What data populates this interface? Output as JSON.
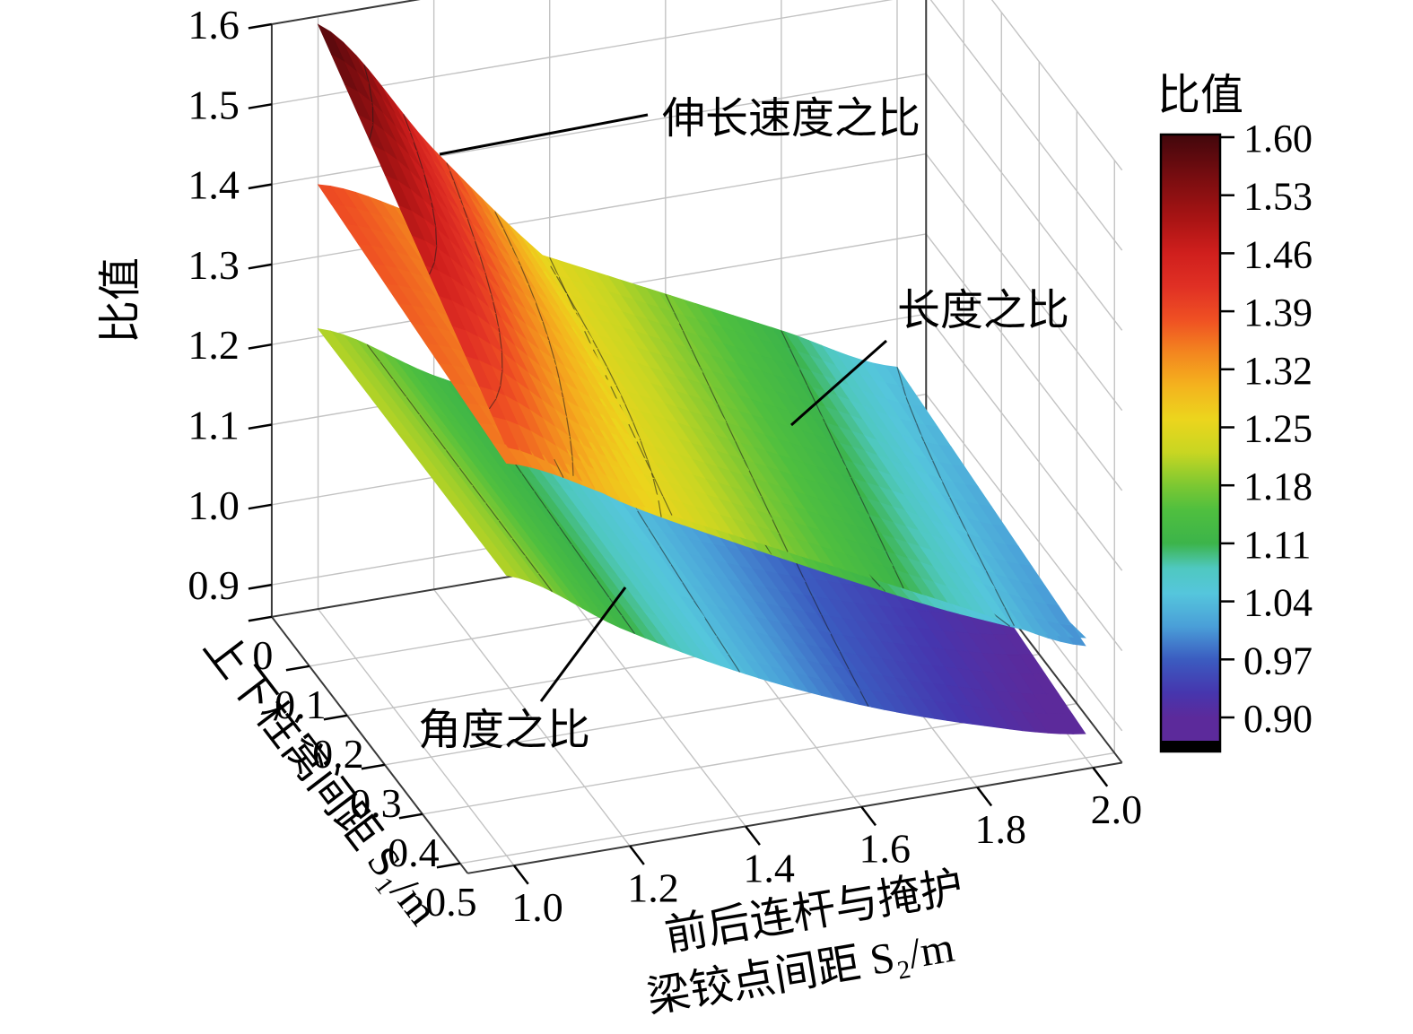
{
  "figure": {
    "colorbar": {
      "title": "比值",
      "tick_labels": [
        "1.60",
        "1.53",
        "1.46",
        "1.39",
        "1.32",
        "1.25",
        "1.18",
        "1.11",
        "1.04",
        "0.97",
        "0.90"
      ]
    },
    "axes": {
      "z": {
        "title": "比值"
      },
      "y": {
        "title": "上下柱窝间距 S₁/m"
      },
      "x": {
        "title_line1": "前后连杆与掩护",
        "title_line2": "梁铰点间距 S₂/m"
      }
    },
    "annotations": [
      {
        "id": "speed-ratio",
        "label": "伸长速度之比"
      },
      {
        "id": "length-ratio",
        "label": "长度之比"
      },
      {
        "id": "angle-ratio",
        "label": "角度之比"
      }
    ]
  },
  "chart_data": {
    "type": "surface",
    "title": "",
    "x_axis": {
      "label": "前后连杆与掩护梁铰点间距 S₂/m",
      "tick_values": [
        1.0,
        1.2,
        1.4,
        1.6,
        1.8,
        2.0
      ],
      "tick_labels": [
        "1.0",
        "1.2",
        "1.4",
        "1.6",
        "1.8",
        "2.0"
      ],
      "range": [
        0.92,
        2.05
      ]
    },
    "y_axis": {
      "label": "上下柱窝间距 S₁/m",
      "tick_values": [
        0,
        0.1,
        0.2,
        0.3,
        0.4,
        0.5
      ],
      "tick_labels": [
        "0",
        "0.1",
        "0.2",
        "0.3",
        "0.4",
        "0.5"
      ],
      "range": [
        0,
        0.52
      ]
    },
    "z_axis": {
      "label": "比值",
      "tick_values": [
        0.9,
        1.0,
        1.1,
        1.2,
        1.3,
        1.4,
        1.5,
        1.6
      ],
      "tick_labels": [
        "0.9",
        "1.0",
        "1.1",
        "1.2",
        "1.3",
        "1.4",
        "1.5",
        "1.6"
      ],
      "range": [
        0.86,
        1.6
      ]
    },
    "surface_x": [
      1.0,
      1.2,
      1.4,
      1.6,
      1.8,
      2.0
    ],
    "surface_y": [
      0,
      0.25,
      0.5
    ],
    "surfaces": [
      {
        "id": "speed-ratio",
        "name": "伸长速度之比",
        "z": [
          [
            1.59,
            1.409,
            1.245,
            1.113,
            1.013,
            0.93
          ],
          [
            1.48,
            1.343,
            1.223,
            1.121,
            1.037,
            0.97
          ],
          [
            1.37,
            1.277,
            1.201,
            1.129,
            1.061,
            1.01
          ]
        ]
      },
      {
        "id": "length-ratio",
        "name": "长度之比",
        "z": [
          [
            1.39,
            1.32,
            1.25,
            1.18,
            1.11,
            1.04
          ],
          [
            1.37,
            1.3,
            1.23,
            1.16,
            1.09,
            1.02
          ],
          [
            1.35,
            1.28,
            1.21,
            1.14,
            1.07,
            1.0
          ]
        ]
      },
      {
        "id": "angle-ratio",
        "name": "角度之比",
        "z": [
          [
            1.21,
            1.127,
            1.057,
            1.001,
            0.959,
            0.93
          ],
          [
            1.21,
            1.123,
            1.049,
            0.989,
            0.943,
            0.91
          ],
          [
            1.21,
            1.119,
            1.041,
            0.977,
            0.927,
            0.89
          ]
        ]
      }
    ],
    "contour_levels": [
      0.97,
      1.04,
      1.11,
      1.18,
      1.25,
      1.32,
      1.39,
      1.46,
      1.53
    ],
    "colorbar_range": [
      0.9,
      1.6
    ],
    "colormap": [
      {
        "v": 0.9,
        "c": "#5c2a9b"
      },
      {
        "v": 0.93,
        "c": "#4636ae"
      },
      {
        "v": 0.97,
        "c": "#3b5cc0"
      },
      {
        "v": 1.01,
        "c": "#4a9fd8"
      },
      {
        "v": 1.05,
        "c": "#55c6dc"
      },
      {
        "v": 1.08,
        "c": "#4fc8c0"
      },
      {
        "v": 1.11,
        "c": "#3cb44a"
      },
      {
        "v": 1.15,
        "c": "#4fbf3f"
      },
      {
        "v": 1.18,
        "c": "#7cc832"
      },
      {
        "v": 1.22,
        "c": "#c8d622"
      },
      {
        "v": 1.26,
        "c": "#ecd51d"
      },
      {
        "v": 1.3,
        "c": "#f4b31e"
      },
      {
        "v": 1.34,
        "c": "#f3861f"
      },
      {
        "v": 1.38,
        "c": "#ef5023"
      },
      {
        "v": 1.42,
        "c": "#e03024"
      },
      {
        "v": 1.46,
        "c": "#d01f1d"
      },
      {
        "v": 1.5,
        "c": "#aa1414"
      },
      {
        "v": 1.55,
        "c": "#7a0d10"
      },
      {
        "v": 1.6,
        "c": "#45070c"
      }
    ]
  }
}
